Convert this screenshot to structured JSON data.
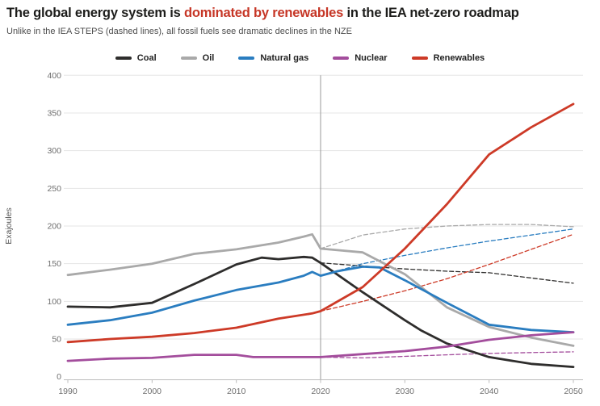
{
  "header": {
    "title_prefix": "The global energy system is ",
    "title_highlight": "dominated by renewables",
    "title_suffix": " in the IEA net-zero roadmap",
    "subtitle": "Unlike in the IEA STEPS (dashed lines), all fossil fuels see dramatic declines in the NZE"
  },
  "colors": {
    "title_text": "#1d1d1b",
    "highlight_red": "#c63626",
    "coal": "#2e2d2c",
    "oil": "#a9a9a9",
    "natural_gas": "#2a7dc0",
    "nuclear": "#a34d9c",
    "renewables": "#cd3a27",
    "grid": "#e5e5e5",
    "axis": "#bcbcbc",
    "tick_text": "#6e6e6e",
    "reference_line": "#999999"
  },
  "legend": {
    "items": [
      {
        "label": "Coal",
        "fuel": "coal"
      },
      {
        "label": "Oil",
        "fuel": "oil"
      },
      {
        "label": "Natural gas",
        "fuel": "natural_gas"
      },
      {
        "label": "Nuclear",
        "fuel": "nuclear"
      },
      {
        "label": "Renewables",
        "fuel": "renewables"
      }
    ]
  },
  "chart_data": {
    "type": "line",
    "title": "The global energy system is dominated by renewables in the IEA net-zero roadmap",
    "subtitle": "Unlike in the IEA STEPS (dashed lines), all fossil fuels see dramatic declines in the NZE",
    "xlabel": "",
    "ylabel": "Exajoules",
    "xlim": [
      1990,
      2050
    ],
    "ylim": [
      0,
      400
    ],
    "x_ticks": [
      1990,
      2000,
      2010,
      2020,
      2030,
      2040,
      2050
    ],
    "y_ticks": [
      0,
      50,
      100,
      150,
      200,
      250,
      300,
      350,
      400
    ],
    "grid": "horizontal",
    "legend_position": "top-center",
    "reference_line_x": 2020,
    "scenario_note": "solid = NZE, dashed = STEPS (from 2020)",
    "series": [
      {
        "name": "Coal (STEPS)",
        "fuel": "coal",
        "scenario": "STEPS",
        "line_style": "dashed",
        "x": [
          2020,
          2025,
          2030,
          2035,
          2040,
          2045,
          2050
        ],
        "y": [
          151,
          147,
          143,
          140,
          138,
          131,
          124
        ]
      },
      {
        "name": "Oil (STEPS)",
        "fuel": "oil",
        "scenario": "STEPS",
        "line_style": "dashed",
        "x": [
          2020,
          2025,
          2030,
          2035,
          2040,
          2045,
          2050
        ],
        "y": [
          170,
          188,
          196,
          200,
          202,
          202,
          199
        ]
      },
      {
        "name": "Natural gas (STEPS)",
        "fuel": "natural_gas",
        "scenario": "STEPS",
        "line_style": "dashed",
        "x": [
          2020,
          2025,
          2030,
          2035,
          2040,
          2045,
          2050
        ],
        "y": [
          134,
          150,
          161,
          171,
          180,
          188,
          196
        ]
      },
      {
        "name": "Nuclear (STEPS)",
        "fuel": "nuclear",
        "scenario": "STEPS",
        "line_style": "dashed",
        "x": [
          2020,
          2025,
          2030,
          2035,
          2040,
          2045,
          2050
        ],
        "y": [
          26,
          25,
          27,
          29,
          31,
          32,
          33
        ]
      },
      {
        "name": "Renewables (STEPS)",
        "fuel": "renewables",
        "scenario": "STEPS",
        "line_style": "dashed",
        "x": [
          2020,
          2025,
          2030,
          2035,
          2040,
          2045,
          2050
        ],
        "y": [
          87,
          100,
          114,
          130,
          149,
          169,
          189
        ]
      },
      {
        "name": "Coal (NZE)",
        "fuel": "coal",
        "scenario": "NZE",
        "line_style": "solid",
        "x": [
          1990,
          1995,
          2000,
          2005,
          2010,
          2013,
          2015,
          2018,
          2019,
          2020,
          2025,
          2030,
          2032,
          2035,
          2040,
          2045,
          2050
        ],
        "y": [
          93,
          92,
          98,
          123,
          149,
          158,
          156,
          159,
          158,
          151,
          112,
          75,
          61,
          44,
          26,
          17,
          13
        ]
      },
      {
        "name": "Oil (NZE)",
        "fuel": "oil",
        "scenario": "NZE",
        "line_style": "solid",
        "x": [
          1990,
          1995,
          2000,
          2005,
          2010,
          2015,
          2018,
          2019,
          2020,
          2022,
          2025,
          2030,
          2035,
          2040,
          2045,
          2050
        ],
        "y": [
          135,
          142,
          150,
          163,
          169,
          178,
          186,
          189,
          170,
          168,
          165,
          136,
          92,
          66,
          52,
          41
        ]
      },
      {
        "name": "Natural gas (NZE)",
        "fuel": "natural_gas",
        "scenario": "NZE",
        "line_style": "solid",
        "x": [
          1990,
          1995,
          2000,
          2005,
          2010,
          2015,
          2018,
          2019,
          2020,
          2022,
          2025,
          2027,
          2030,
          2035,
          2040,
          2045,
          2050
        ],
        "y": [
          69,
          75,
          85,
          101,
          115,
          125,
          134,
          139,
          134,
          140,
          146,
          145,
          128,
          98,
          69,
          62,
          59
        ]
      },
      {
        "name": "Nuclear (NZE)",
        "fuel": "nuclear",
        "scenario": "NZE",
        "line_style": "solid",
        "x": [
          1990,
          1995,
          2000,
          2005,
          2010,
          2012,
          2016,
          2020,
          2025,
          2030,
          2035,
          2040,
          2045,
          2050
        ],
        "y": [
          21,
          24,
          25,
          29,
          29,
          26,
          26,
          26,
          30,
          34,
          40,
          49,
          55,
          59
        ]
      },
      {
        "name": "Renewables (NZE)",
        "fuel": "renewables",
        "scenario": "NZE",
        "line_style": "solid",
        "x": [
          1990,
          1995,
          2000,
          2005,
          2010,
          2015,
          2019,
          2020,
          2025,
          2030,
          2035,
          2040,
          2045,
          2050
        ],
        "y": [
          46,
          50,
          53,
          58,
          65,
          77,
          84,
          87,
          119,
          170,
          229,
          295,
          331,
          362
        ]
      }
    ]
  }
}
